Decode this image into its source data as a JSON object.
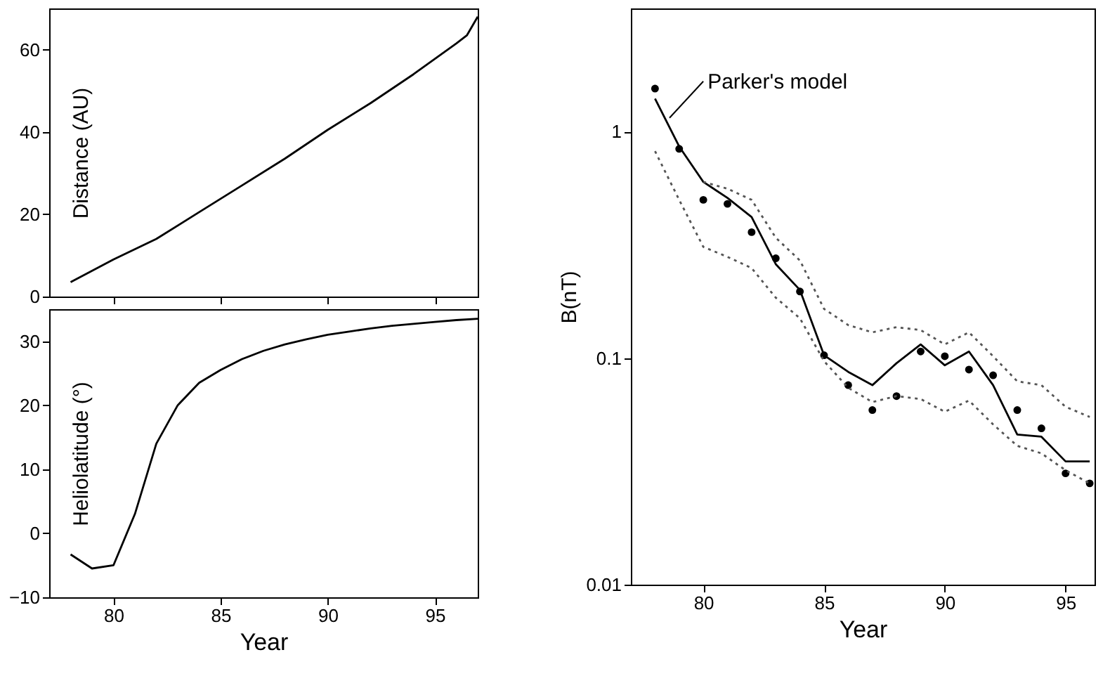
{
  "chart_data": [
    {
      "type": "line",
      "ylabel": "Distance (AU)",
      "xlim": [
        77,
        97
      ],
      "ylim": [
        0,
        70
      ],
      "xticks": [
        80,
        85,
        90,
        95
      ],
      "yticks": [
        0,
        20,
        40,
        60
      ],
      "tick_labels": "y",
      "grid": false,
      "legend": false,
      "series": [
        {
          "color": "#000000",
          "line_style": "solid",
          "x": [
            78,
            80,
            82,
            84,
            86,
            88,
            90,
            92,
            94,
            96,
            96.5,
            97
          ],
          "values": [
            3.5,
            9,
            14,
            20.5,
            27,
            33.5,
            40.5,
            47,
            54,
            61.5,
            63.5,
            68
          ]
        }
      ]
    },
    {
      "type": "line",
      "ylabel": "Heliolatitude (°)",
      "xlabel": "Year",
      "xlim": [
        77,
        97
      ],
      "ylim": [
        -10,
        35
      ],
      "xticks": [
        80,
        85,
        90,
        95
      ],
      "yticks": [
        -10,
        0,
        10,
        20,
        30
      ],
      "grid": false,
      "legend": false,
      "series": [
        {
          "color": "#000000",
          "line_style": "solid",
          "x": [
            78,
            79,
            80,
            81,
            82,
            83,
            84,
            85,
            86,
            87,
            88,
            89,
            90,
            91,
            92,
            93,
            94,
            95,
            96,
            97
          ],
          "values": [
            -3.3,
            -5.5,
            -5,
            3,
            14,
            20,
            23.5,
            25.5,
            27.2,
            28.5,
            29.5,
            30.3,
            31,
            31.5,
            32,
            32.4,
            32.7,
            33,
            33.3,
            33.5
          ]
        }
      ]
    },
    {
      "type": "line",
      "ylabel": "B(nT)",
      "xlabel": "Year",
      "log": "y",
      "xlim": [
        77,
        96.2
      ],
      "ylim": [
        0.01,
        3.5
      ],
      "xticks": [
        80,
        85,
        90,
        95
      ],
      "yticks": [
        0.01,
        0.1,
        1
      ],
      "grid": false,
      "legend": false,
      "annotations": [
        {
          "text": "Parker's model",
          "x": 78.6,
          "y": 1.15
        }
      ],
      "series": [
        {
          "type": "scatter",
          "marker": "circle",
          "color": "#000000",
          "x": [
            78,
            79,
            80,
            81,
            82,
            83,
            84,
            85,
            86,
            87,
            88,
            89,
            90,
            91,
            92,
            93,
            94,
            95,
            96
          ],
          "values": [
            1.55,
            0.84,
            0.5,
            0.48,
            0.36,
            0.276,
            0.197,
            0.103,
            0.076,
            0.059,
            0.068,
            0.107,
            0.102,
            0.089,
            0.084,
            0.059,
            0.049,
            0.031,
            0.028
          ]
        },
        {
          "type": "line",
          "line_style": "solid",
          "color": "#000000",
          "x": [
            78,
            79,
            80,
            81,
            82,
            83,
            84,
            85,
            86,
            87,
            88,
            89,
            90,
            91,
            92,
            93,
            94,
            95,
            96
          ],
          "values": [
            1.4,
            0.86,
            0.6,
            0.51,
            0.42,
            0.26,
            0.2,
            0.103,
            0.087,
            0.076,
            0.095,
            0.115,
            0.093,
            0.107,
            0.076,
            0.046,
            0.045,
            0.035,
            0.035
          ]
        },
        {
          "type": "line",
          "line_style": "dotted",
          "color": "#555555",
          "x": [
            80,
            81,
            82,
            83,
            84,
            85,
            86,
            87,
            88,
            89,
            90,
            91,
            92,
            93,
            94,
            95,
            96
          ],
          "values": [
            0.6,
            0.56,
            0.5,
            0.34,
            0.27,
            0.165,
            0.14,
            0.13,
            0.137,
            0.133,
            0.115,
            0.13,
            0.102,
            0.079,
            0.076,
            0.061,
            0.055
          ]
        },
        {
          "type": "line",
          "line_style": "dotted",
          "color": "#555555",
          "x": [
            78,
            79,
            80,
            81,
            82,
            83,
            84,
            85,
            86,
            87,
            88,
            89,
            90,
            91,
            92,
            93,
            94,
            95,
            96
          ],
          "values": [
            0.82,
            0.5,
            0.31,
            0.28,
            0.25,
            0.185,
            0.15,
            0.097,
            0.074,
            0.064,
            0.068,
            0.066,
            0.058,
            0.065,
            0.051,
            0.041,
            0.038,
            0.032,
            0.028
          ]
        }
      ]
    }
  ]
}
